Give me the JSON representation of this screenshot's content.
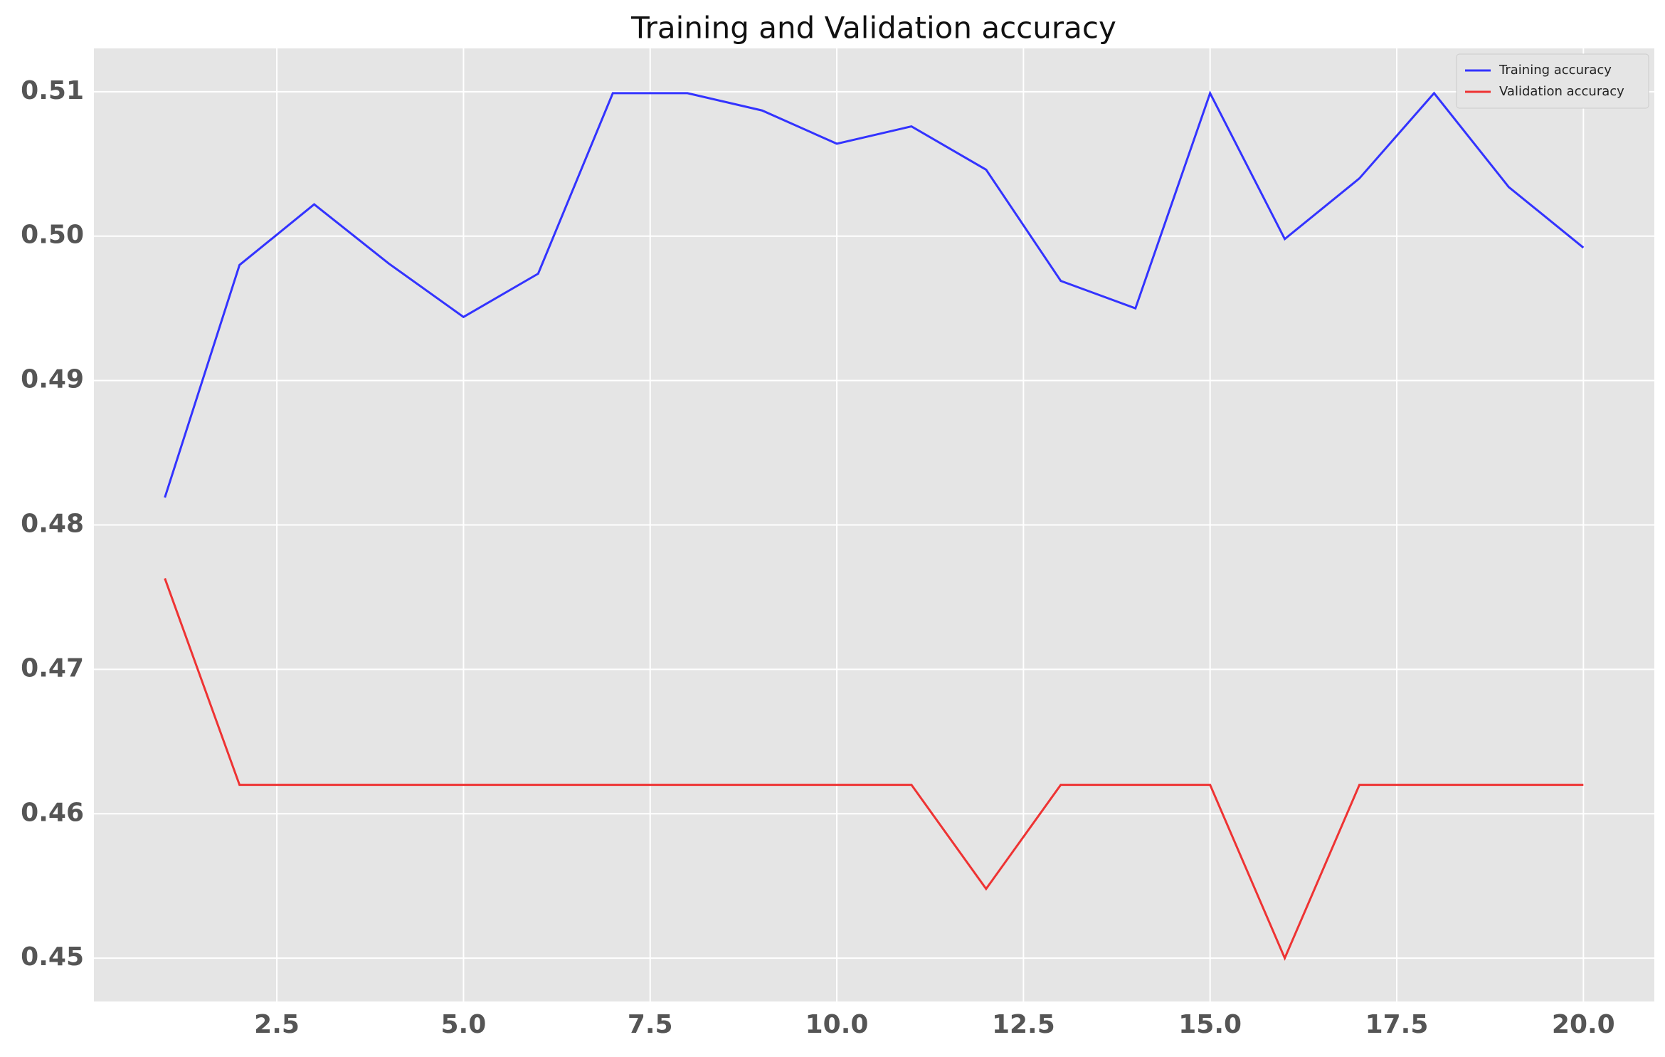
{
  "chart_data": {
    "type": "line",
    "title": "Training and Validation accuracy",
    "x": [
      1,
      2,
      3,
      4,
      5,
      6,
      7,
      8,
      9,
      10,
      11,
      12,
      13,
      14,
      15,
      16,
      17,
      18,
      19,
      20
    ],
    "series": [
      {
        "name": "Training accuracy",
        "color": "#3333ff",
        "values": [
          0.4819,
          0.498,
          0.5022,
          0.4981,
          0.4944,
          0.4974,
          0.5099,
          0.5099,
          0.5087,
          0.5064,
          0.5076,
          0.5046,
          0.4969,
          0.495,
          0.5099,
          0.4998,
          0.504,
          0.5099,
          0.5034,
          0.4992
        ]
      },
      {
        "name": "Validation accuracy",
        "color": "#ee3333",
        "values": [
          0.4763,
          0.462,
          0.462,
          0.462,
          0.462,
          0.462,
          0.462,
          0.462,
          0.462,
          0.462,
          0.462,
          0.4548,
          0.462,
          0.462,
          0.462,
          0.45,
          0.462,
          0.462,
          0.462,
          0.462
        ]
      }
    ],
    "xlim": [
      0.05,
      20.95
    ],
    "ylim": [
      0.447,
      0.513
    ],
    "xticks": [
      2.5,
      {
        "value": 5,
        "label": "5.0"
      },
      7.5,
      {
        "value": 10,
        "label": "10.0"
      },
      12.5,
      {
        "value": 15,
        "label": "15.0"
      },
      17.5,
      {
        "value": 20,
        "label": "20.0"
      }
    ],
    "yticks": [
      0.45,
      {
        "value": 0.46,
        "label": "0.46"
      },
      0.47,
      0.48,
      0.49,
      {
        "value": 0.5,
        "label": "0.50"
      },
      0.51
    ],
    "grid": true,
    "legend": "upper right"
  }
}
